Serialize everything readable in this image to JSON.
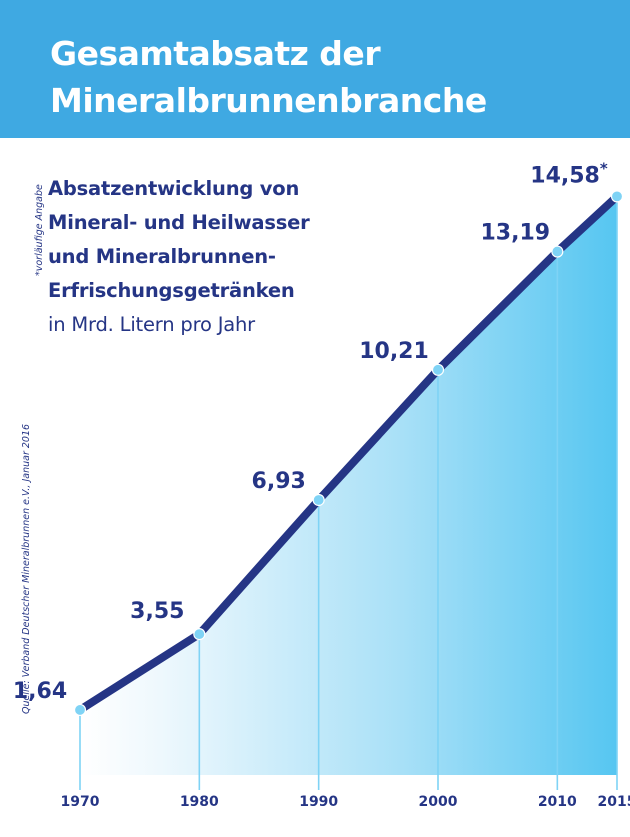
{
  "header": {
    "title_line1": "Gesamtabsatz der",
    "title_line2": "Mineralbrunnenbranche"
  },
  "subtitle": {
    "line1": "Absatzentwicklung von",
    "line2": "Mineral- und Heilwasser",
    "line3": "und Mineralbrunnen-",
    "line4": "Erfrischungsgetränken",
    "line5": "in Mrd. Litern pro Jahr"
  },
  "source": "Quelle: Verband Deutscher Mineralbrunnen e.V., Januar 2016",
  "footnote": "*vorläufige Angabe",
  "colors": {
    "header_blue": "#3fa9e2",
    "line_navy": "#253585",
    "area_light": "#e3f4fc",
    "area_dark": "#5ac8f2",
    "point_cyan": "#7fd3f5"
  },
  "chart_data": {
    "type": "area",
    "x": [
      1970,
      1980,
      1990,
      2000,
      2010,
      2015
    ],
    "x_tick_labels": [
      "1970",
      "1980",
      "1990",
      "2000",
      "2010",
      "2015"
    ],
    "value_labels": [
      "1,64",
      "3,55",
      "6,93",
      "10,21",
      "13,19",
      "14,58"
    ],
    "values": [
      1.64,
      3.55,
      6.93,
      10.21,
      13.19,
      14.58
    ],
    "value_label_markers": [
      "",
      "",
      "",
      "",
      "",
      "*"
    ],
    "xlim": [
      1970,
      2015
    ],
    "ylim": [
      0,
      14.58
    ],
    "grid": false,
    "legend": "none"
  }
}
